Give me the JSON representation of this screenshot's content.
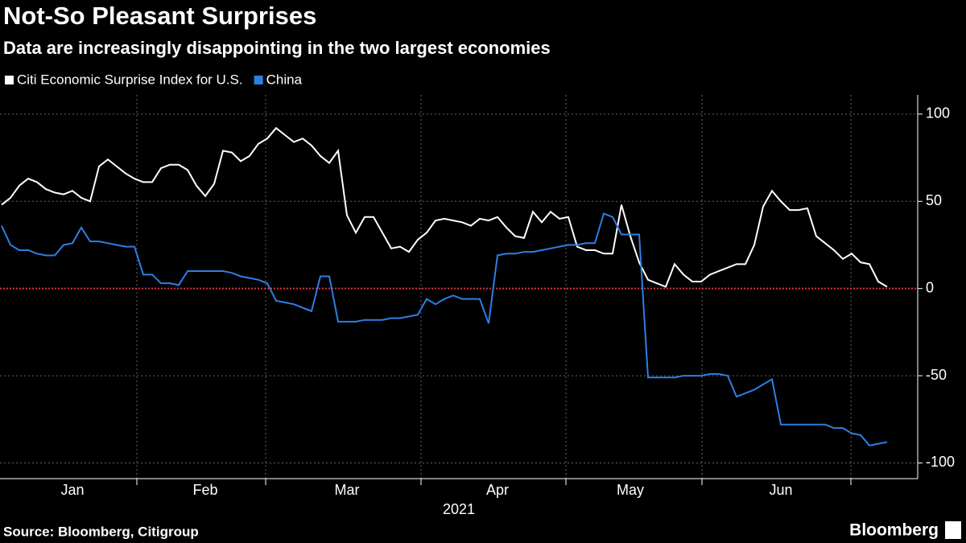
{
  "chart_data": {
    "type": "line",
    "title": "Not-So Pleasant Surprises",
    "subtitle": "Data are increasingly disappointing in the two largest economies",
    "source": "Source: Bloomberg, Citigroup",
    "brand": "Bloomberg",
    "xlabel": "2021",
    "categories": [
      null,
      null,
      null,
      null,
      null,
      null,
      null,
      null,
      "Jan",
      null,
      null,
      null,
      null,
      null,
      null,
      null,
      null,
      null,
      null,
      null,
      null,
      null,
      null,
      "Feb",
      null,
      null,
      null,
      null,
      null,
      null,
      null,
      null,
      null,
      null,
      null,
      null,
      null,
      null,
      null,
      "Mar",
      null,
      null,
      null,
      null,
      null,
      null,
      null,
      null,
      null,
      null,
      null,
      null,
      null,
      null,
      null,
      null,
      "Apr",
      null,
      null,
      null,
      null,
      null,
      null,
      null,
      null,
      null,
      null,
      null,
      null,
      null,
      null,
      "May",
      null,
      null,
      null,
      null,
      null,
      null,
      null,
      null,
      null,
      null,
      null,
      null,
      null,
      null,
      null,
      null,
      "Jun",
      null,
      null,
      null,
      null,
      null,
      null,
      null,
      null,
      null,
      null,
      null,
      null
    ],
    "series": [
      {
        "name": "Citi Economic Surprise Index for U.S.",
        "color": "#ffffff",
        "values": [
          48,
          52,
          59,
          63,
          61,
          57,
          55,
          54,
          56,
          52,
          50,
          70,
          74,
          70,
          66,
          63,
          61,
          61,
          69,
          71,
          71,
          68,
          59,
          53,
          60,
          79,
          78,
          73,
          76,
          83,
          86,
          92,
          88,
          84,
          86,
          82,
          76,
          72,
          79,
          42,
          32,
          41,
          41,
          32,
          23,
          24,
          21,
          28,
          32,
          39,
          40,
          39,
          38,
          36,
          40,
          39,
          41,
          35,
          30,
          29,
          44,
          38,
          44,
          40,
          41,
          24,
          22,
          22,
          20,
          20,
          48,
          30,
          15,
          5,
          3,
          1,
          14,
          8,
          4,
          4,
          8,
          10,
          12,
          14,
          14,
          25,
          47,
          56,
          50,
          45,
          45,
          46,
          30,
          26,
          22,
          17,
          20,
          15,
          14,
          4,
          1
        ]
      },
      {
        "name": "China",
        "color": "#2d7fe3",
        "values": [
          36,
          25,
          22,
          22,
          20,
          19,
          19,
          25,
          26,
          35,
          27,
          27,
          26,
          25,
          24,
          24,
          8,
          8,
          3,
          3,
          2,
          10,
          10,
          10,
          10,
          10,
          9,
          7,
          6,
          5,
          3,
          -7,
          -8,
          -9,
          -11,
          -13,
          7,
          7,
          -19,
          -19,
          -19,
          -18,
          -18,
          -18,
          -17,
          -17,
          -16,
          -15,
          -6,
          -9,
          -6,
          -4,
          -6,
          -6,
          -6,
          -20,
          19,
          20,
          20,
          21,
          21,
          22,
          23,
          24,
          25,
          25,
          26,
          26,
          43,
          41,
          31,
          31,
          31,
          -51,
          -51,
          -51,
          -51,
          -50,
          -50,
          -50,
          -49,
          -49,
          -50,
          -62,
          -60,
          -58,
          -55,
          -52,
          -78,
          -78,
          -78,
          -78,
          -78,
          -78,
          -80,
          -80,
          -83,
          -84,
          -90,
          -89,
          -88
        ]
      }
    ],
    "ylim": [
      -109,
      111
    ],
    "yticks": [
      100,
      50,
      0,
      -50,
      -100
    ],
    "grid": true,
    "zero_line_color": "#e0303a"
  }
}
